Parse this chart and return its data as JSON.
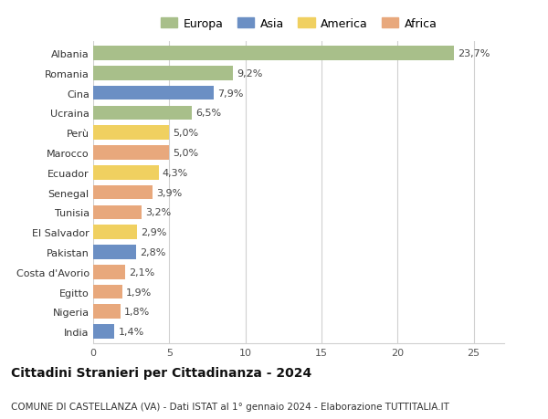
{
  "countries": [
    "Albania",
    "Romania",
    "Cina",
    "Ucraina",
    "Perù",
    "Marocco",
    "Ecuador",
    "Senegal",
    "Tunisia",
    "El Salvador",
    "Pakistan",
    "Costa d'Avorio",
    "Egitto",
    "Nigeria",
    "India"
  ],
  "values": [
    23.7,
    9.2,
    7.9,
    6.5,
    5.0,
    5.0,
    4.3,
    3.9,
    3.2,
    2.9,
    2.8,
    2.1,
    1.9,
    1.8,
    1.4
  ],
  "labels": [
    "23,7%",
    "9,2%",
    "7,9%",
    "6,5%",
    "5,0%",
    "5,0%",
    "4,3%",
    "3,9%",
    "3,2%",
    "2,9%",
    "2,8%",
    "2,1%",
    "1,9%",
    "1,8%",
    "1,4%"
  ],
  "regions": [
    "Europa",
    "Europa",
    "Asia",
    "Europa",
    "America",
    "Africa",
    "America",
    "Africa",
    "Africa",
    "America",
    "Asia",
    "Africa",
    "Africa",
    "Africa",
    "Asia"
  ],
  "region_colors": {
    "Europa": "#a8bf8a",
    "Asia": "#6b8fc4",
    "America": "#f0d060",
    "Africa": "#e8a87c"
  },
  "legend_order": [
    "Europa",
    "Asia",
    "America",
    "Africa"
  ],
  "title": "Cittadini Stranieri per Cittadinanza - 2024",
  "subtitle": "COMUNE DI CASTELLANZA (VA) - Dati ISTAT al 1° gennaio 2024 - Elaborazione TUTTITALIA.IT",
  "xlim": [
    0,
    27
  ],
  "xticks": [
    0,
    5,
    10,
    15,
    20,
    25
  ],
  "background_color": "#ffffff",
  "grid_color": "#d0d0d0",
  "bar_height": 0.72,
  "label_fontsize": 8,
  "tick_fontsize": 8,
  "title_fontsize": 10,
  "subtitle_fontsize": 7.5
}
